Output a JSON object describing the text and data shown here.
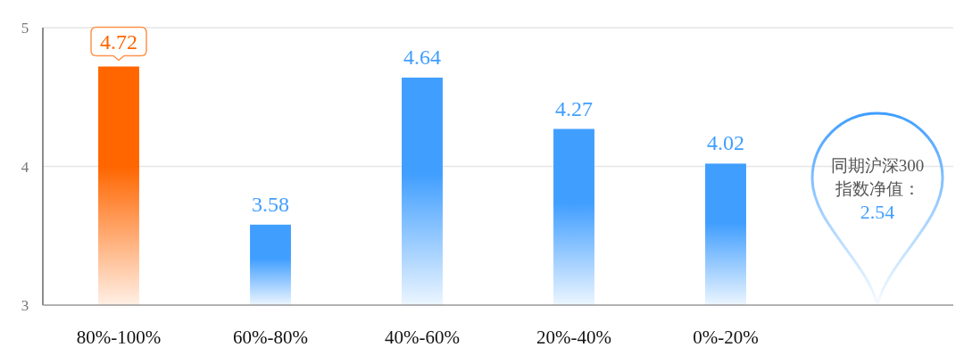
{
  "chart_data": {
    "type": "bar",
    "categories": [
      "80%-100%",
      "60%-80%",
      "40%-60%",
      "20%-40%",
      "0%-20%",
      null
    ],
    "values": [
      4.72,
      3.58,
      4.64,
      4.27,
      4.02,
      null
    ],
    "colors": [
      "#ff6600",
      "#409eff",
      "#409eff",
      "#409eff",
      "#409eff",
      "#409eff"
    ],
    "ylim": [
      3,
      5
    ],
    "yticks": [
      3,
      4,
      5
    ],
    "grid": "y",
    "data_labels": true,
    "annotations": [
      "同期沪深300指数净值：",
      "2.54"
    ]
  }
}
